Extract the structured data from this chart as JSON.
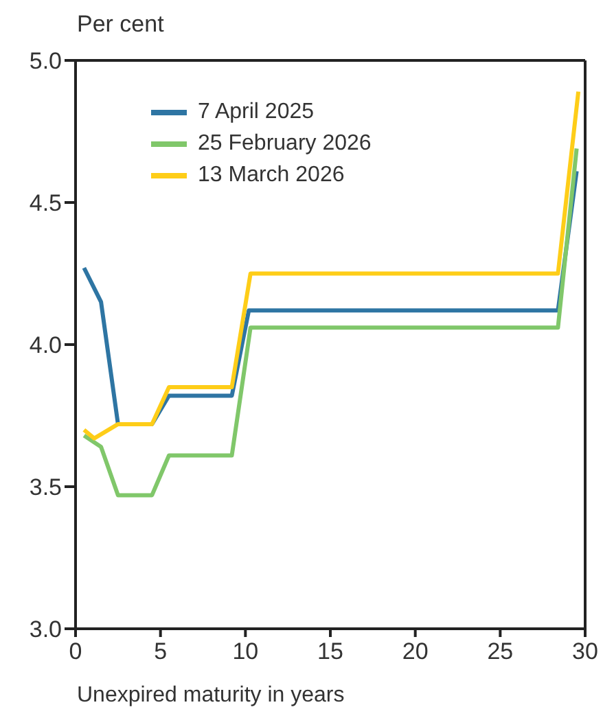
{
  "chart_data": {
    "type": "line",
    "ylabel": "Per cent",
    "xlabel": "Unexpired maturity in years",
    "xlim": [
      0,
      30
    ],
    "xticks": [
      0,
      5,
      10,
      15,
      20,
      25,
      30
    ],
    "ylim": [
      3.0,
      5.0
    ],
    "yticks": [
      {
        "value": 3.0,
        "label": "3.0"
      },
      {
        "value": 3.5,
        "label": "3.5"
      },
      {
        "value": 4.0,
        "label": "4.0"
      },
      {
        "value": 4.5,
        "label": "4.5"
      },
      {
        "value": 5.0,
        "label": "5.0"
      }
    ],
    "legend": "top left",
    "marker": "none",
    "series": [
      {
        "name": "7 April 2025",
        "color": "#2e75a3",
        "x": [
          0.5,
          1.5,
          2.5,
          4.5,
          5.5,
          9.2,
          10.2,
          28.4,
          29.5
        ],
        "values": [
          4.27,
          4.15,
          3.72,
          3.72,
          3.82,
          3.82,
          4.12,
          4.12,
          4.61
        ]
      },
      {
        "name": "25 February 2026",
        "color": "#80c76a",
        "x": [
          0.5,
          1.5,
          2.5,
          4.5,
          5.5,
          9.2,
          10.3,
          28.4,
          29.5
        ],
        "values": [
          3.68,
          3.64,
          3.47,
          3.47,
          3.61,
          3.61,
          4.06,
          4.06,
          4.69
        ]
      },
      {
        "name": "13 March 2026",
        "color": "#fecd18",
        "x": [
          0.5,
          1.1,
          2.5,
          4.5,
          5.5,
          9.2,
          10.3,
          28.4,
          29.6
        ],
        "values": [
          3.7,
          3.67,
          3.72,
          3.72,
          3.85,
          3.85,
          4.25,
          4.25,
          4.89
        ]
      }
    ]
  }
}
